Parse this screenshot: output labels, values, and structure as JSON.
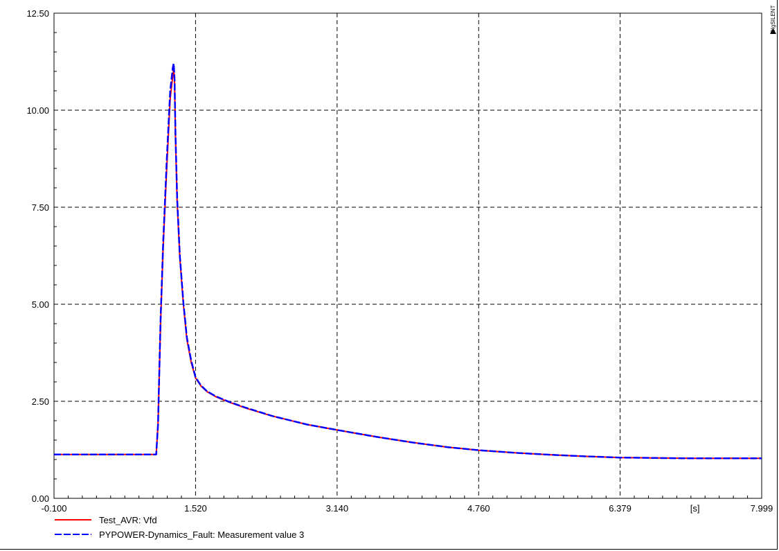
{
  "brand": "DIgSILENT",
  "chart_data": {
    "type": "line",
    "xlabel": "",
    "x_unit_label": "[s]",
    "ylabel": "",
    "xlim": [
      -0.1,
      7.999
    ],
    "ylim": [
      0.0,
      12.5
    ],
    "x_ticks": [
      -0.1,
      1.52,
      3.14,
      4.76,
      6.379,
      7.999
    ],
    "x_tick_labels": [
      "-0.100",
      "1.520",
      "3.140",
      "4.760",
      "6.379",
      "7.999"
    ],
    "y_ticks": [
      0.0,
      2.5,
      5.0,
      7.5,
      10.0,
      12.5
    ],
    "y_tick_labels": [
      "0.00",
      "2.50",
      "5.00",
      "7.50",
      "10.00",
      "12.50"
    ],
    "grid": true,
    "legend_position": "bottom-left",
    "series": [
      {
        "name": "Test_AVR: Vfd",
        "color": "#ff0000",
        "style": "solid",
        "x": [
          -0.1,
          0.5,
          1.0,
          1.07,
          1.09,
          1.12,
          1.15,
          1.19,
          1.23,
          1.26,
          1.27,
          1.28,
          1.29,
          1.31,
          1.34,
          1.38,
          1.42,
          1.47,
          1.52,
          1.58,
          1.65,
          1.75,
          1.9,
          2.1,
          2.4,
          2.8,
          3.14,
          3.6,
          4.0,
          4.4,
          4.76,
          5.2,
          5.6,
          6.0,
          6.379,
          6.8,
          7.2,
          7.6,
          7.999
        ],
        "y": [
          1.13,
          1.13,
          1.13,
          1.13,
          1.9,
          4.5,
          6.5,
          8.5,
          10.3,
          10.9,
          11.1,
          10.7,
          9.3,
          7.6,
          6.2,
          5.0,
          4.1,
          3.5,
          3.1,
          2.9,
          2.75,
          2.62,
          2.48,
          2.32,
          2.12,
          1.9,
          1.76,
          1.58,
          1.44,
          1.32,
          1.24,
          1.17,
          1.12,
          1.08,
          1.05,
          1.04,
          1.03,
          1.03,
          1.03
        ]
      },
      {
        "name": "PYPOWER-Dynamics_Fault: Measurement value 3",
        "color": "#0000ff",
        "style": "dashed",
        "x": [
          -0.1,
          0.5,
          1.0,
          1.07,
          1.09,
          1.12,
          1.15,
          1.19,
          1.23,
          1.26,
          1.27,
          1.28,
          1.29,
          1.31,
          1.34,
          1.38,
          1.42,
          1.47,
          1.52,
          1.58,
          1.65,
          1.75,
          1.9,
          2.1,
          2.4,
          2.8,
          3.14,
          3.6,
          4.0,
          4.4,
          4.76,
          5.2,
          5.6,
          6.0,
          6.379,
          6.8,
          7.2,
          7.6,
          7.999
        ],
        "y": [
          1.13,
          1.13,
          1.13,
          1.13,
          1.9,
          4.6,
          6.6,
          8.7,
          10.5,
          11.1,
          11.2,
          10.8,
          9.4,
          7.7,
          6.25,
          5.05,
          4.15,
          3.55,
          3.12,
          2.91,
          2.76,
          2.63,
          2.49,
          2.33,
          2.12,
          1.9,
          1.76,
          1.58,
          1.44,
          1.32,
          1.24,
          1.17,
          1.12,
          1.08,
          1.05,
          1.04,
          1.03,
          1.03,
          1.03
        ]
      }
    ]
  }
}
